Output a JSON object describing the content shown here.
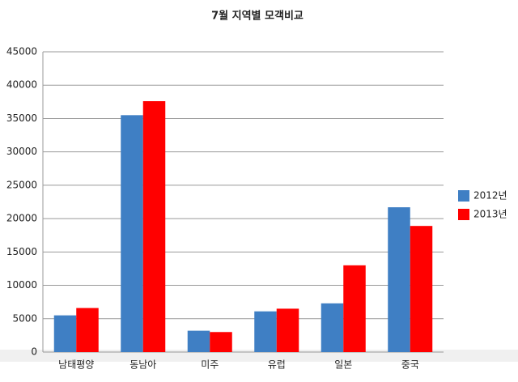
{
  "chart_data": {
    "type": "bar",
    "title": "7월 지역별 모객비교",
    "categories": [
      "남태평양",
      "동남아",
      "미주",
      "유럽",
      "일본",
      "중국"
    ],
    "series": [
      {
        "name": "2012년",
        "color": "#3f7fc4",
        "values": [
          5500,
          35500,
          3200,
          6100,
          7300,
          21700
        ]
      },
      {
        "name": "2013년",
        "color": "#ff0000",
        "values": [
          6600,
          37600,
          3000,
          6500,
          13000,
          18900
        ]
      }
    ],
    "ylim": [
      0,
      45000
    ],
    "yticks": [
      0,
      5000,
      10000,
      15000,
      20000,
      25000,
      30000,
      35000,
      40000,
      45000
    ],
    "grid": true,
    "legend": "right"
  }
}
